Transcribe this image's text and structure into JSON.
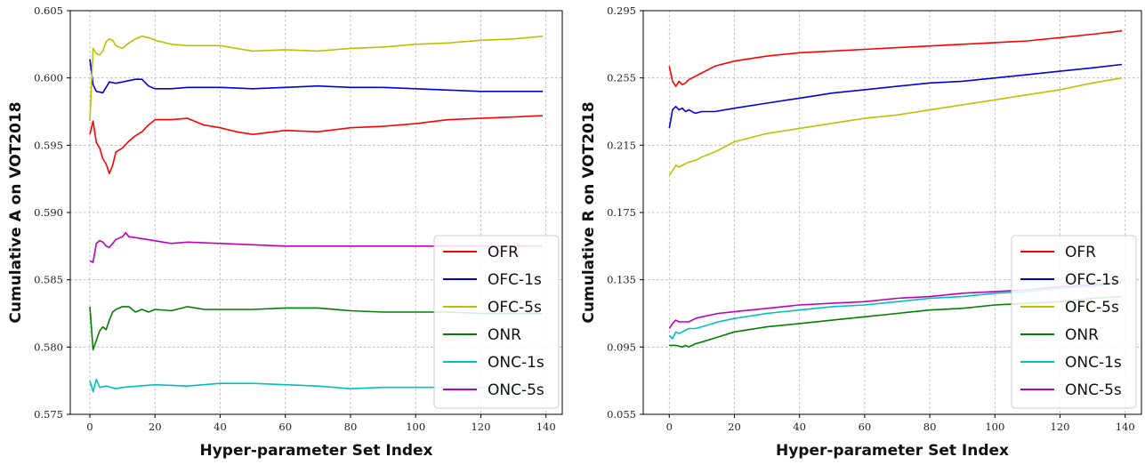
{
  "chart_data": [
    {
      "type": "line",
      "xlabel": "Hyper-parameter Set Index",
      "ylabel": "Cumulative A on VOT2018",
      "xlim": [
        -6,
        145
      ],
      "ylim": [
        0.575,
        0.605
      ],
      "x_ticks": [
        0,
        20,
        40,
        60,
        80,
        100,
        120,
        140
      ],
      "x_tick_labels": [
        "0",
        "20",
        "40",
        "60",
        "80",
        "100",
        "120",
        "140"
      ],
      "y_ticks": [
        0.575,
        0.58,
        0.585,
        0.59,
        0.595,
        0.6,
        0.605
      ],
      "y_tick_labels": [
        "0.575",
        "0.580",
        "0.585",
        "0.590",
        "0.595",
        "0.600",
        "0.605"
      ],
      "grid": true,
      "legend_position": "lower-right",
      "series": [
        {
          "name": "OFR",
          "color": "#ff0000",
          "x": [
            0,
            1,
            2,
            3,
            4,
            5,
            6,
            7,
            8,
            10,
            12,
            14,
            16,
            18,
            20,
            25,
            30,
            35,
            40,
            45,
            50,
            60,
            70,
            80,
            90,
            100,
            110,
            120,
            130,
            139
          ],
          "y": [
            0.5958,
            0.5968,
            0.5952,
            0.5948,
            0.594,
            0.5936,
            0.5929,
            0.5935,
            0.5945,
            0.5948,
            0.5953,
            0.5957,
            0.596,
            0.5965,
            0.5969,
            0.5969,
            0.597,
            0.5965,
            0.5963,
            0.596,
            0.5958,
            0.5961,
            0.596,
            0.5963,
            0.5964,
            0.5966,
            0.5969,
            0.597,
            0.5971,
            0.5972
          ]
        },
        {
          "name": "OFC-1s",
          "color": "#0000dd",
          "x": [
            0,
            1,
            2,
            4,
            6,
            8,
            10,
            14,
            16,
            18,
            20,
            25,
            30,
            40,
            50,
            60,
            70,
            80,
            90,
            100,
            110,
            120,
            130,
            139
          ],
          "y": [
            0.6014,
            0.5995,
            0.599,
            0.5989,
            0.5997,
            0.5996,
            0.5997,
            0.5999,
            0.5999,
            0.5994,
            0.5992,
            0.5992,
            0.5993,
            0.5993,
            0.5992,
            0.5993,
            0.5994,
            0.5993,
            0.5993,
            0.5992,
            0.5991,
            0.599,
            0.599,
            0.599
          ]
        },
        {
          "name": "OFC-5s",
          "color": "#bfbf00",
          "x": [
            0,
            1,
            2,
            3,
            4,
            5,
            6,
            7,
            8,
            10,
            12,
            14,
            16,
            18,
            20,
            25,
            30,
            35,
            40,
            45,
            50,
            60,
            70,
            80,
            90,
            100,
            110,
            120,
            130,
            139
          ],
          "y": [
            0.5968,
            0.6022,
            0.6018,
            0.6017,
            0.602,
            0.6027,
            0.6029,
            0.6028,
            0.6024,
            0.6022,
            0.6026,
            0.6029,
            0.6031,
            0.603,
            0.6028,
            0.6025,
            0.6024,
            0.6024,
            0.6024,
            0.6022,
            0.602,
            0.6021,
            0.602,
            0.6022,
            0.6023,
            0.6025,
            0.6026,
            0.6028,
            0.6029,
            0.6031
          ]
        },
        {
          "name": "ONR",
          "color": "#007f00",
          "x": [
            0,
            1,
            2,
            3,
            4,
            5,
            6,
            7,
            8,
            10,
            12,
            14,
            16,
            18,
            20,
            25,
            30,
            35,
            40,
            50,
            60,
            70,
            80,
            90,
            100,
            110,
            120,
            130,
            139
          ],
          "y": [
            0.583,
            0.5798,
            0.5805,
            0.5812,
            0.5815,
            0.5813,
            0.582,
            0.5826,
            0.5828,
            0.583,
            0.583,
            0.5826,
            0.5828,
            0.5826,
            0.5828,
            0.5827,
            0.583,
            0.5828,
            0.5828,
            0.5828,
            0.5829,
            0.5829,
            0.5827,
            0.5826,
            0.5826,
            0.5826,
            0.5825,
            0.5825,
            0.5825
          ]
        },
        {
          "name": "ONC-1s",
          "color": "#00bfbf",
          "x": [
            0,
            1,
            2,
            3,
            5,
            8,
            10,
            15,
            20,
            30,
            40,
            50,
            60,
            70,
            80,
            90,
            100,
            110,
            120,
            130,
            139
          ],
          "y": [
            0.5775,
            0.5767,
            0.5776,
            0.577,
            0.5771,
            0.5769,
            0.577,
            0.5771,
            0.5772,
            0.5771,
            0.5773,
            0.5773,
            0.5772,
            0.5771,
            0.5769,
            0.577,
            0.577,
            0.577,
            0.577,
            0.577,
            0.577
          ]
        },
        {
          "name": "ONC-5s",
          "color": "#bf00bf",
          "x": [
            0,
            1,
            2,
            3,
            4,
            5,
            6,
            8,
            10,
            11,
            12,
            15,
            20,
            25,
            30,
            40,
            50,
            60,
            70,
            80,
            90,
            100,
            110,
            120,
            130,
            139
          ],
          "y": [
            0.5864,
            0.5863,
            0.5877,
            0.5879,
            0.5878,
            0.5875,
            0.5874,
            0.588,
            0.5882,
            0.5885,
            0.5882,
            0.5881,
            0.5879,
            0.5877,
            0.5878,
            0.5877,
            0.5876,
            0.5875,
            0.5875,
            0.5875,
            0.5875,
            0.5875,
            0.5875,
            0.5875,
            0.5875,
            0.5875
          ]
        }
      ]
    },
    {
      "type": "line",
      "xlabel": "Hyper-parameter Set Index",
      "ylabel": "Cumulative R on VOT2018",
      "xlim": [
        -8,
        145
      ],
      "ylim": [
        0.055,
        0.295
      ],
      "x_ticks": [
        0,
        20,
        40,
        60,
        80,
        100,
        120,
        140
      ],
      "x_tick_labels": [
        "0",
        "20",
        "40",
        "60",
        "80",
        "100",
        "120",
        "140"
      ],
      "y_ticks": [
        0.055,
        0.095,
        0.135,
        0.175,
        0.215,
        0.255,
        0.295
      ],
      "y_tick_labels": [
        "0.055",
        "0.095",
        "0.135",
        "0.175",
        "0.215",
        "0.255",
        "0.295"
      ],
      "grid": true,
      "legend_position": "lower-right",
      "series": [
        {
          "name": "OFR",
          "color": "#ff0000",
          "x": [
            0,
            1,
            2,
            3,
            4,
            5,
            6,
            8,
            10,
            14,
            20,
            30,
            40,
            50,
            60,
            70,
            80,
            90,
            100,
            110,
            120,
            130,
            139
          ],
          "y": [
            0.262,
            0.253,
            0.25,
            0.253,
            0.251,
            0.252,
            0.254,
            0.256,
            0.258,
            0.262,
            0.265,
            0.268,
            0.27,
            0.271,
            0.272,
            0.273,
            0.274,
            0.275,
            0.276,
            0.277,
            0.279,
            0.281,
            0.283
          ]
        },
        {
          "name": "OFC-1s",
          "color": "#0000dd",
          "x": [
            0,
            1,
            2,
            3,
            4,
            5,
            6,
            8,
            10,
            14,
            20,
            30,
            40,
            50,
            60,
            70,
            80,
            90,
            100,
            110,
            120,
            130,
            139
          ],
          "y": [
            0.225,
            0.236,
            0.238,
            0.236,
            0.237,
            0.235,
            0.236,
            0.234,
            0.235,
            0.235,
            0.237,
            0.24,
            0.243,
            0.246,
            0.248,
            0.25,
            0.252,
            0.253,
            0.255,
            0.257,
            0.259,
            0.261,
            0.263
          ]
        },
        {
          "name": "OFC-5s",
          "color": "#bfbf00",
          "x": [
            0,
            1,
            2,
            3,
            4,
            5,
            6,
            8,
            10,
            14,
            20,
            30,
            40,
            50,
            60,
            70,
            80,
            90,
            100,
            110,
            120,
            130,
            139
          ],
          "y": [
            0.197,
            0.2,
            0.203,
            0.202,
            0.203,
            0.204,
            0.205,
            0.206,
            0.208,
            0.211,
            0.217,
            0.222,
            0.225,
            0.228,
            0.231,
            0.233,
            0.236,
            0.239,
            0.242,
            0.245,
            0.248,
            0.252,
            0.255
          ]
        },
        {
          "name": "ONR",
          "color": "#007f00",
          "x": [
            0,
            2,
            4,
            5,
            6,
            8,
            10,
            15,
            20,
            30,
            40,
            50,
            60,
            70,
            80,
            90,
            100,
            110,
            120,
            130,
            139
          ],
          "y": [
            0.096,
            0.096,
            0.095,
            0.096,
            0.095,
            0.097,
            0.098,
            0.101,
            0.104,
            0.107,
            0.109,
            0.111,
            0.113,
            0.115,
            0.117,
            0.118,
            0.12,
            0.121,
            0.122,
            0.124,
            0.125
          ]
        },
        {
          "name": "ONC-1s",
          "color": "#00bfbf",
          "x": [
            0,
            1,
            2,
            3,
            4,
            6,
            8,
            10,
            15,
            20,
            30,
            40,
            50,
            60,
            70,
            80,
            90,
            100,
            110,
            120,
            130,
            139
          ],
          "y": [
            0.102,
            0.1,
            0.104,
            0.103,
            0.104,
            0.106,
            0.106,
            0.107,
            0.11,
            0.112,
            0.115,
            0.117,
            0.119,
            0.12,
            0.122,
            0.124,
            0.125,
            0.127,
            0.128,
            0.13,
            0.131,
            0.133
          ]
        },
        {
          "name": "ONC-5s",
          "color": "#bf00bf",
          "x": [
            0,
            1,
            2,
            3,
            4,
            6,
            8,
            10,
            15,
            20,
            30,
            40,
            50,
            60,
            70,
            80,
            90,
            100,
            110,
            120,
            130,
            139
          ],
          "y": [
            0.106,
            0.109,
            0.111,
            0.11,
            0.11,
            0.11,
            0.112,
            0.113,
            0.115,
            0.116,
            0.118,
            0.12,
            0.121,
            0.122,
            0.124,
            0.125,
            0.127,
            0.128,
            0.129,
            0.131,
            0.132,
            0.134
          ]
        }
      ]
    }
  ]
}
